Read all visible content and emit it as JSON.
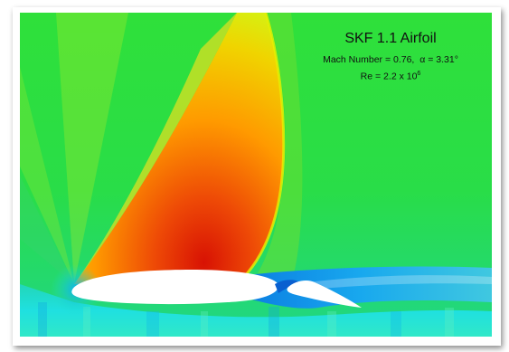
{
  "figure": {
    "title": "SKF 1.1 Airfoil",
    "mach_label": "Mach Number = 0.76,",
    "alpha_symbol": "α",
    "alpha_value": "= 3.31°",
    "re_prefix": "Re = 2.2 x 10",
    "re_exponent": "6"
  },
  "colors": {
    "freestream": "#1fe04a",
    "supersonic_peak": "#e51e06",
    "supersonic_mid": "#ff9a00",
    "shock_yellow": "#f2f200",
    "wake": "#1aa8e8",
    "lower_surface": "#25e0d8",
    "airfoil": "#ffffff"
  }
}
